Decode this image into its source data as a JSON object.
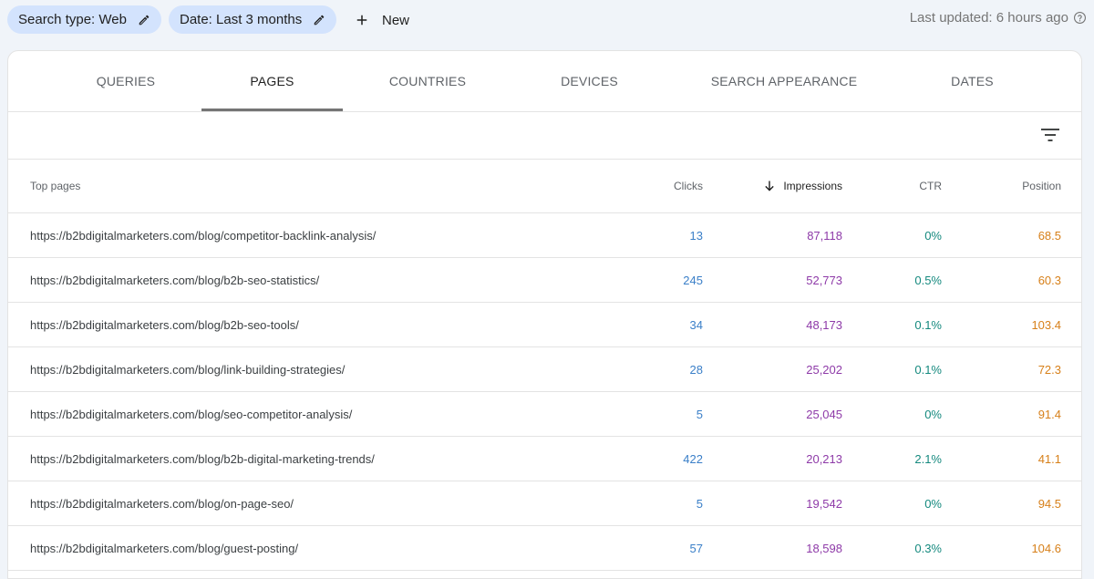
{
  "filters": {
    "search_type_label": "Search type: Web",
    "date_label": "Date: Last 3 months",
    "new_label": "New"
  },
  "status": {
    "last_updated": "Last updated: 6 hours ago"
  },
  "tabs": [
    {
      "label": "QUERIES",
      "active": false
    },
    {
      "label": "PAGES",
      "active": true
    },
    {
      "label": "COUNTRIES",
      "active": false
    },
    {
      "label": "DEVICES",
      "active": false
    },
    {
      "label": "SEARCH APPEARANCE",
      "active": false
    },
    {
      "label": "DATES",
      "active": false
    }
  ],
  "table": {
    "headers": {
      "page": "Top pages",
      "clicks": "Clicks",
      "impressions": "Impressions",
      "ctr": "CTR",
      "position": "Position"
    },
    "sorted_by": "impressions",
    "sort_direction": "descending",
    "rows": [
      {
        "page": "https://b2bdigitalmarketers.com/blog/competitor-backlink-analysis/",
        "clicks": "13",
        "impressions": "87,118",
        "ctr": "0%",
        "position": "68.5"
      },
      {
        "page": "https://b2bdigitalmarketers.com/blog/b2b-seo-statistics/",
        "clicks": "245",
        "impressions": "52,773",
        "ctr": "0.5%",
        "position": "60.3"
      },
      {
        "page": "https://b2bdigitalmarketers.com/blog/b2b-seo-tools/",
        "clicks": "34",
        "impressions": "48,173",
        "ctr": "0.1%",
        "position": "103.4"
      },
      {
        "page": "https://b2bdigitalmarketers.com/blog/link-building-strategies/",
        "clicks": "28",
        "impressions": "25,202",
        "ctr": "0.1%",
        "position": "72.3"
      },
      {
        "page": "https://b2bdigitalmarketers.com/blog/seo-competitor-analysis/",
        "clicks": "5",
        "impressions": "25,045",
        "ctr": "0%",
        "position": "91.4"
      },
      {
        "page": "https://b2bdigitalmarketers.com/blog/b2b-digital-marketing-trends/",
        "clicks": "422",
        "impressions": "20,213",
        "ctr": "2.1%",
        "position": "41.1"
      },
      {
        "page": "https://b2bdigitalmarketers.com/blog/on-page-seo/",
        "clicks": "5",
        "impressions": "19,542",
        "ctr": "0%",
        "position": "94.5"
      },
      {
        "page": "https://b2bdigitalmarketers.com/blog/guest-posting/",
        "clicks": "57",
        "impressions": "18,598",
        "ctr": "0.3%",
        "position": "104.6"
      }
    ]
  },
  "icons": {
    "edit": "pencil-icon",
    "add": "plus-icon",
    "help": "help-circle-icon",
    "filter": "filter-list-icon",
    "sort": "arrow-down-icon"
  },
  "colors": {
    "chip_bg": "#d3e3fd",
    "page_bg": "#f0f4f9",
    "clicks": "#3a7fc8",
    "impressions": "#8e3aa8",
    "ctr": "#14897e",
    "position": "#d7801a"
  }
}
